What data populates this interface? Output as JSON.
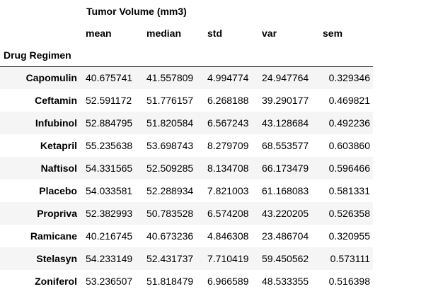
{
  "table": {
    "column_group": "Tumor Volume (mm3)",
    "columns": [
      "mean",
      "median",
      "std",
      "var",
      "sem"
    ],
    "index_name": "Drug Regimen",
    "rows": [
      {
        "drug": "Capomulin",
        "mean": "40.675741",
        "median": "41.557809",
        "std": "4.994774",
        "var": "24.947764",
        "sem": "0.329346"
      },
      {
        "drug": "Ceftamin",
        "mean": "52.591172",
        "median": "51.776157",
        "std": "6.268188",
        "var": "39.290177",
        "sem": "0.469821"
      },
      {
        "drug": "Infubinol",
        "mean": "52.884795",
        "median": "51.820584",
        "std": "6.567243",
        "var": "43.128684",
        "sem": "0.492236"
      },
      {
        "drug": "Ketapril",
        "mean": "55.235638",
        "median": "53.698743",
        "std": "8.279709",
        "var": "68.553577",
        "sem": "0.603860"
      },
      {
        "drug": "Naftisol",
        "mean": "54.331565",
        "median": "52.509285",
        "std": "8.134708",
        "var": "66.173479",
        "sem": "0.596466"
      },
      {
        "drug": "Placebo",
        "mean": "54.033581",
        "median": "52.288934",
        "std": "7.821003",
        "var": "61.168083",
        "sem": "0.581331"
      },
      {
        "drug": "Propriva",
        "mean": "52.382993",
        "median": "50.783528",
        "std": "6.574208",
        "var": "43.220205",
        "sem": "0.526358"
      },
      {
        "drug": "Ramicane",
        "mean": "40.216745",
        "median": "40.673236",
        "std": "4.846308",
        "var": "23.486704",
        "sem": "0.320955"
      },
      {
        "drug": "Stelasyn",
        "mean": "54.233149",
        "median": "52.431737",
        "std": "7.710419",
        "var": "59.450562",
        "sem": "0.573111"
      },
      {
        "drug": "Zoniferol",
        "mean": "53.236507",
        "median": "51.818479",
        "std": "6.966589",
        "var": "48.533355",
        "sem": "0.516398"
      }
    ]
  },
  "colors": {
    "stripe": "#f5f5f5",
    "text": "#000000",
    "border": "#000000"
  }
}
